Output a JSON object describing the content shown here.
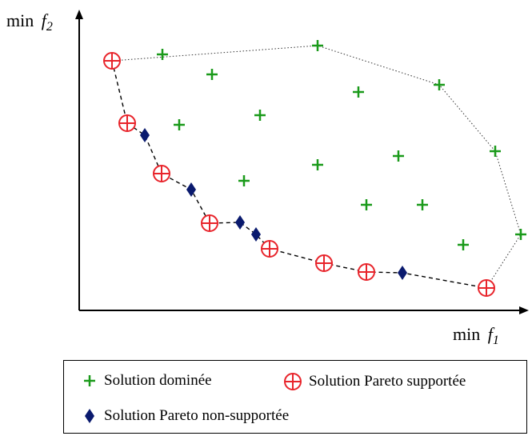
{
  "axes": {
    "y_label": "min",
    "y_symbol": "f",
    "y_sub": "2",
    "x_label": "min",
    "x_symbol": "f",
    "x_sub": "1"
  },
  "legend": {
    "dominated": "Solution dominée",
    "supported": "Solution Pareto supportée",
    "non_supported": "Solution Pareto non-supportée"
  },
  "colors": {
    "dominated": "#1a9a1a",
    "supported": "#e8242b",
    "non_supported": "#0a1a6e",
    "axis": "#000000"
  },
  "points": {
    "supported": [
      [
        140,
        76
      ],
      [
        159,
        154
      ],
      [
        202,
        217
      ],
      [
        262,
        279
      ],
      [
        337,
        311
      ],
      [
        405,
        329
      ],
      [
        458,
        340
      ],
      [
        608,
        360
      ]
    ],
    "non_supported": [
      [
        181,
        169
      ],
      [
        239,
        237
      ],
      [
        300,
        278
      ],
      [
        320,
        293
      ],
      [
        503,
        341
      ]
    ],
    "dominated": [
      [
        203,
        68
      ],
      [
        397,
        57
      ],
      [
        265,
        93
      ],
      [
        448,
        115
      ],
      [
        549,
        106
      ],
      [
        224,
        156
      ],
      [
        325,
        144
      ],
      [
        619,
        189
      ],
      [
        498,
        195
      ],
      [
        397,
        206
      ],
      [
        305,
        226
      ],
      [
        458,
        256
      ],
      [
        528,
        256
      ],
      [
        651,
        293
      ],
      [
        579,
        306
      ]
    ]
  },
  "hull_outline": [
    [
      140,
      76
    ],
    [
      397,
      57
    ],
    [
      549,
      106
    ],
    [
      619,
      189
    ],
    [
      651,
      293
    ],
    [
      608,
      360
    ]
  ]
}
